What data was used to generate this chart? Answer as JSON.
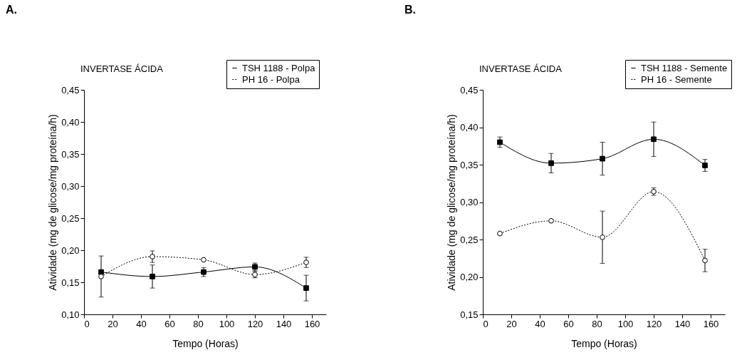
{
  "chart_data": [
    {
      "type": "line",
      "title": "INVERTASE ÁCIDA",
      "xlabel": "Tempo (Horas)",
      "ylabel": "Atividade (mg de glicose/mg proteína/h)",
      "annotations": [
        "A."
      ],
      "x": [
        12,
        48,
        84,
        120,
        156
      ],
      "series": [
        {
          "name": "TSH 1188 - Polpa",
          "color": "#000000",
          "marker": "square",
          "line_style": "solid",
          "values": [
            0.166,
            0.159,
            0.166,
            0.174,
            0.141
          ],
          "errors": [
            null,
            0.018,
            0.007,
            0.006,
            0.02
          ]
        },
        {
          "name": "PH 16 - Polpa",
          "color": "#000000",
          "marker": "circle",
          "line_style": "dotted",
          "values": [
            0.159,
            0.19,
            0.185,
            0.162,
            0.181
          ],
          "errors": [
            0.032,
            0.009,
            null,
            0.005,
            0.008
          ]
        }
      ],
      "xlim": [
        0,
        170
      ],
      "xticks": [
        0,
        20,
        40,
        60,
        80,
        100,
        120,
        140,
        160
      ],
      "ylim": [
        0.1,
        0.45
      ],
      "yticks": [
        {
          "value": 0.1,
          "label": "0,10"
        },
        {
          "value": 0.15,
          "label": "0,15"
        },
        {
          "value": 0.2,
          "label": "0,20"
        },
        {
          "value": 0.25,
          "label": "0,25"
        },
        {
          "value": 0.3,
          "label": "0,30"
        },
        {
          "value": 0.35,
          "label": "0,35"
        },
        {
          "value": 0.4,
          "label": "0,40"
        },
        {
          "value": 0.45,
          "label": "0,45"
        }
      ],
      "grid": false,
      "legend": "top right"
    },
    {
      "type": "line",
      "title": "INVERTASE ÁCIDA",
      "xlabel": "Tempo (Horas)",
      "ylabel": "Atividade (mg de glicose/mg proteína/h)",
      "annotations": [
        "B."
      ],
      "x": [
        12,
        48,
        84,
        120,
        156
      ],
      "series": [
        {
          "name": "TSH 1188 - Semente",
          "color": "#000000",
          "marker": "square",
          "line_style": "solid",
          "values": [
            0.38,
            0.352,
            0.358,
            0.384,
            0.349
          ],
          "errors": [
            0.007,
            0.013,
            0.022,
            0.023,
            0.008
          ]
        },
        {
          "name": "PH 16 - Semente",
          "color": "#000000",
          "marker": "circle",
          "line_style": "dotted",
          "values": [
            0.258,
            0.275,
            0.253,
            0.314,
            0.222
          ],
          "errors": [
            null,
            null,
            0.035,
            0.005,
            0.015
          ]
        }
      ],
      "xlim": [
        0,
        170
      ],
      "xticks": [
        0,
        20,
        40,
        60,
        80,
        100,
        120,
        140,
        160
      ],
      "ylim": [
        0.15,
        0.45
      ],
      "yticks": [
        {
          "value": 0.15,
          "label": "0,15"
        },
        {
          "value": 0.2,
          "label": "0,20"
        },
        {
          "value": 0.25,
          "label": "0,25"
        },
        {
          "value": 0.3,
          "label": "0,30"
        },
        {
          "value": 0.35,
          "label": "0,35"
        },
        {
          "value": 0.4,
          "label": "0,40"
        },
        {
          "value": 0.45,
          "label": "0,45"
        }
      ],
      "grid": false,
      "legend": "top right"
    }
  ]
}
